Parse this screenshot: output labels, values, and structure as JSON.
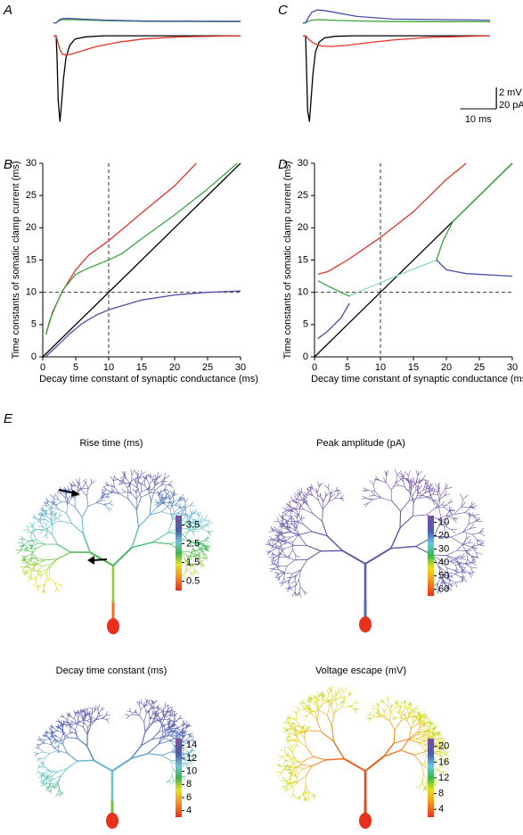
{
  "panel_labels": [
    "A",
    "B",
    "C",
    "D",
    "E"
  ],
  "chart_data": [
    {
      "type": "trace",
      "xlim": [
        0,
        52
      ],
      "ylim": [
        -83,
        25
      ],
      "y2lim": [
        -9.5,
        1.3
      ],
      "series": [
        {
          "color": "#000000",
          "x": [
            0,
            0.75,
            1,
            1.3,
            1.8,
            2.2,
            2.8,
            3.5,
            4.5,
            6,
            9,
            14,
            52
          ],
          "values": [
            0,
            0,
            -20,
            -60,
            -80,
            -65,
            -40,
            -20,
            -9,
            -3,
            -1,
            0,
            0
          ]
        },
        {
          "color": "#e2342a",
          "x": [
            0,
            0.75,
            1.2,
            1.8,
            2.5,
            3.5,
            5,
            8,
            12,
            18,
            25,
            35,
            52
          ],
          "values": [
            0,
            0,
            -6,
            -13,
            -17,
            -18,
            -17,
            -14,
            -10,
            -6,
            -3,
            -1,
            0
          ]
        },
        {
          "color": "#3aa540",
          "axis": "y2",
          "x": [
            0,
            0.75,
            1.5,
            2.5,
            4,
            8,
            15,
            25,
            52
          ],
          "values": [
            0,
            0,
            0.2,
            0.3,
            0.32,
            0.27,
            0.2,
            0.14,
            0.12
          ]
        },
        {
          "color": "#4a4fa8",
          "axis": "y2",
          "x": [
            0,
            0.75,
            1.5,
            2.5,
            4,
            8,
            15,
            25,
            52
          ],
          "values": [
            0,
            0,
            0.25,
            0.4,
            0.42,
            0.35,
            0.25,
            0.18,
            0.15
          ]
        }
      ]
    },
    {
      "type": "line",
      "xlabel": "Decay time constant of synaptic conductance (ms)",
      "ylabel": "Time constants of somatic clamp current (ms)",
      "xlim": [
        0,
        30
      ],
      "ylim": [
        0,
        30
      ],
      "xticks": [
        0,
        5,
        10,
        15,
        20,
        25,
        30
      ],
      "yticks": [
        0,
        5,
        10,
        15,
        20,
        25,
        30
      ],
      "vlines": [
        10
      ],
      "hlines": [
        10
      ],
      "series": [
        {
          "color": "#000000",
          "x": [
            0,
            30
          ],
          "values": [
            0,
            30
          ]
        },
        {
          "color": "#e2342a",
          "x": [
            0.5,
            1.5,
            3,
            5,
            7,
            10,
            15,
            20,
            23.3
          ],
          "values": [
            3.5,
            7,
            10.2,
            13.5,
            15.8,
            18,
            22.3,
            26.5,
            30
          ]
        },
        {
          "color": "#3aa540",
          "x": [
            0.5,
            1,
            2,
            3,
            5,
            7,
            10,
            12,
            15,
            20,
            25,
            29.5
          ],
          "values": [
            3.5,
            5.5,
            8,
            10.3,
            12.8,
            13.8,
            15,
            16,
            18.3,
            22,
            26,
            30
          ]
        },
        {
          "color": "#4a4fa8",
          "x": [
            0.5,
            2,
            4,
            6,
            8,
            10,
            15,
            20,
            25,
            30
          ],
          "values": [
            0.1,
            1.5,
            3.5,
            5.2,
            6.4,
            7.3,
            8.8,
            9.6,
            10,
            10.2
          ]
        }
      ]
    },
    {
      "type": "trace",
      "xlim": [
        0,
        52
      ],
      "ylim": [
        -83,
        25
      ],
      "y2lim": [
        -9.5,
        1.3
      ],
      "series": [
        {
          "color": "#000000",
          "x": [
            0,
            0.75,
            1,
            1.3,
            1.8,
            2.2,
            2.8,
            3.5,
            4.5,
            6,
            9,
            14,
            52
          ],
          "values": [
            0,
            0,
            -30,
            -70,
            -80,
            -62,
            -35,
            -15,
            -6,
            -2,
            -0.5,
            0,
            0
          ]
        },
        {
          "color": "#e2342a",
          "x": [
            0,
            0.75,
            1.5,
            3,
            5,
            8,
            12,
            18,
            25,
            35,
            52
          ],
          "values": [
            0,
            0,
            -3,
            -7,
            -9.5,
            -10,
            -9,
            -6.5,
            -4,
            -1.5,
            0
          ]
        },
        {
          "color": "#3aa540",
          "axis": "y2",
          "x": [
            0,
            0.75,
            1.5,
            2.5,
            4,
            6,
            10,
            15,
            25,
            52
          ],
          "values": [
            0,
            0,
            0.15,
            0.25,
            0.3,
            0.28,
            0.22,
            0.18,
            0.12,
            0.1
          ]
        },
        {
          "color": "#4a4fa8",
          "axis": "y2",
          "x": [
            0,
            0.75,
            1.5,
            2.5,
            4,
            6,
            10,
            15,
            25,
            52
          ],
          "values": [
            0,
            0,
            0.5,
            1,
            1.2,
            1.15,
            0.9,
            0.6,
            0.35,
            0.25
          ]
        }
      ]
    },
    {
      "type": "line",
      "xlabel": "Decay time constant of synaptic conductance (ms)",
      "ylabel": "Time constants of somatic clamp current (ms)",
      "xlim": [
        0,
        30
      ],
      "ylim": [
        0,
        30
      ],
      "xticks": [
        0,
        5,
        10,
        15,
        20,
        25,
        30
      ],
      "yticks": [
        0,
        5,
        10,
        15,
        20,
        25,
        30
      ],
      "vlines": [
        10
      ],
      "hlines": [
        10
      ],
      "series": [
        {
          "color": "#000000",
          "x": [
            0,
            30
          ],
          "values": [
            0,
            30
          ]
        },
        {
          "color": "#e2342a",
          "x": [
            0.5,
            2,
            5,
            10,
            15,
            20,
            23
          ],
          "values": [
            12.8,
            13.2,
            15,
            18.5,
            22.5,
            27.5,
            30
          ]
        },
        {
          "color": "#3aa540",
          "x": [
            0.5,
            2,
            4,
            5.3
          ],
          "values": [
            11.8,
            11,
            10,
            9.4
          ]
        },
        {
          "color": "#8fd6c8",
          "x": [
            5.3,
            7,
            10,
            14,
            18.5
          ],
          "values": [
            9.4,
            10.2,
            11.5,
            13.2,
            15
          ]
        },
        {
          "color": "#3aa540",
          "x": [
            18.5,
            19.5,
            21,
            24,
            27,
            30
          ],
          "values": [
            15,
            18,
            21,
            24,
            27,
            30
          ]
        },
        {
          "color": "#4a4fa8",
          "x": [
            0.5,
            2,
            4,
            5.3
          ],
          "values": [
            2.8,
            4,
            6,
            8.3
          ]
        },
        {
          "color": "#4a4fa8",
          "x": [
            18.5,
            20,
            23,
            30
          ],
          "values": [
            15,
            13.5,
            12.9,
            12.5
          ]
        }
      ]
    }
  ],
  "scale_bar": {
    "x": 10,
    "x_label": "10 ms",
    "y": 20,
    "y_label": "20 pA",
    "y2": 2,
    "y2_label": "2 mV"
  },
  "maps": [
    {
      "title": "Rise time (ms)",
      "colorbar_ticks": [
        3.5,
        2.5,
        1.5,
        0.5
      ]
    },
    {
      "title": "Peak amplitude (pA)",
      "colorbar_ticks": [
        10,
        20,
        30,
        40,
        50,
        60
      ]
    },
    {
      "title": "Decay time constant (ms)",
      "colorbar_ticks": [
        14,
        12,
        10,
        8,
        6,
        4
      ]
    },
    {
      "title": "Voltage escape (mV)",
      "colorbar_ticks": [
        20,
        16,
        12,
        8,
        4
      ]
    }
  ]
}
